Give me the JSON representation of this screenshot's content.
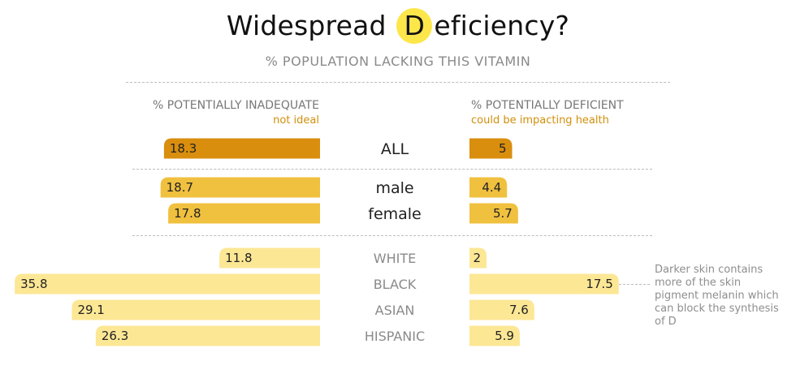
{
  "title": {
    "before": "Widespread ",
    "badge": "D",
    "after": "eficiency?"
  },
  "subtitle": "% POPULATION LACKING THIS VITAMIN",
  "left_header": {
    "label": "% POTENTIALLY INADEQUATE",
    "sub": "not ideal"
  },
  "right_header": {
    "label": "% POTENTIALLY DEFICIENT",
    "sub": "could be impacting health"
  },
  "note": "Darker skin contains more of the skin pigment melanin which can block the synthesis of D",
  "colors": {
    "all": "#d98e0e",
    "sex": "#f0c03f",
    "race": "#fce795",
    "label_dark": "#222222",
    "label_race": "#8a8a8a"
  },
  "chart_data": {
    "type": "bar",
    "categories": [
      "ALL",
      "male",
      "female",
      "WHITE",
      "BLACK",
      "ASIAN",
      "HISPANIC"
    ],
    "groups": [
      "all",
      "sex",
      "sex",
      "race",
      "race",
      "race",
      "race"
    ],
    "series": [
      {
        "name": "% POTENTIALLY INADEQUATE",
        "values": [
          18.3,
          18.7,
          17.8,
          11.8,
          35.8,
          29.1,
          26.3
        ]
      },
      {
        "name": "% POTENTIALLY DEFICIENT",
        "values": [
          5,
          4.4,
          5.7,
          2,
          17.5,
          7.6,
          5.9
        ]
      }
    ]
  }
}
